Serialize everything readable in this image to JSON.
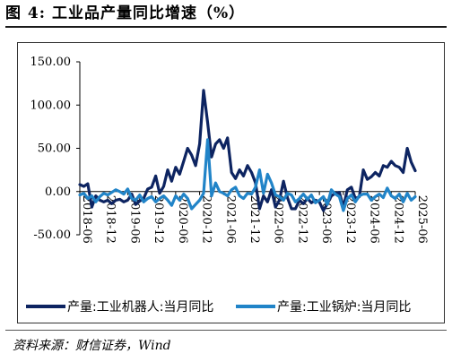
{
  "header": {
    "title": "图 4:  工业品产量同比增速（%）"
  },
  "footer": {
    "source": "资料来源：财信证券，Wind"
  },
  "chart_data": {
    "type": "line",
    "ylim": [
      -50,
      150
    ],
    "yticks": [
      "150.00",
      "100.00",
      "50.00",
      "0.00",
      "-50.00"
    ],
    "ytick_values": [
      150,
      100,
      50,
      0,
      -50
    ],
    "xtick_labels": [
      "2018-06",
      "2018-12",
      "2019-06",
      "2019-12",
      "2020-06",
      "2020-12",
      "2021-06",
      "2021-12",
      "2022-06",
      "2022-12",
      "2023-06",
      "2023-12",
      "2024-06",
      "2024-12",
      "2025-06"
    ],
    "x_range": [
      "2018-06",
      "2025-06"
    ],
    "legend_position": "bottom",
    "series": [
      {
        "name": "产量:工业机器人:当月同比",
        "color": "#0d2461",
        "x": [
          "2018-06",
          "2018-07",
          "2018-08",
          "2018-09",
          "2018-10",
          "2018-11",
          "2018-12",
          "2019-01",
          "2019-02",
          "2019-03",
          "2019-04",
          "2019-05",
          "2019-06",
          "2019-07",
          "2019-08",
          "2019-09",
          "2019-10",
          "2019-11",
          "2019-12",
          "2020-01",
          "2020-02",
          "2020-03",
          "2020-04",
          "2020-05",
          "2020-06",
          "2020-07",
          "2020-08",
          "2020-09",
          "2020-10",
          "2020-11",
          "2020-12",
          "2021-01",
          "2021-02",
          "2021-03",
          "2021-04",
          "2021-05",
          "2021-06",
          "2021-07",
          "2021-08",
          "2021-09",
          "2021-10",
          "2021-11",
          "2021-12",
          "2022-01",
          "2022-02",
          "2022-03",
          "2022-04",
          "2022-05",
          "2022-06",
          "2022-07",
          "2022-08",
          "2022-09",
          "2022-10",
          "2022-11",
          "2022-12",
          "2023-01",
          "2023-02",
          "2023-03",
          "2023-04",
          "2023-05",
          "2023-06",
          "2023-07",
          "2023-08",
          "2023-09",
          "2023-10",
          "2023-11",
          "2023-12",
          "2024-01",
          "2024-02",
          "2024-03",
          "2024-04",
          "2024-05",
          "2024-06",
          "2024-07",
          "2024-08",
          "2024-09",
          "2024-10",
          "2024-11",
          "2024-12",
          "2025-01",
          "2025-02",
          "2025-03",
          "2025-04",
          "2025-05",
          "2025-06"
        ],
        "values": [
          8,
          6,
          9,
          -18,
          -5,
          -10,
          -12,
          -10,
          -14,
          -10,
          -9,
          -12,
          -10,
          -3,
          -15,
          -11,
          -8,
          3,
          5,
          18,
          -2,
          6,
          25,
          12,
          28,
          20,
          35,
          50,
          42,
          30,
          55,
          117,
          80,
          40,
          55,
          60,
          50,
          62,
          22,
          15,
          25,
          18,
          30,
          22,
          10,
          -20,
          -5,
          -12,
          2,
          -18,
          -10,
          12,
          -7,
          -20,
          -20,
          -10,
          -14,
          -8,
          -13,
          -10,
          -12,
          -22,
          -14,
          -5,
          -2,
          -1,
          -18,
          2,
          5,
          -8,
          -6,
          25,
          14,
          17,
          22,
          18,
          30,
          28,
          35,
          30,
          28,
          22,
          50,
          34,
          24
        ]
      },
      {
        "name": "产量:工业锅炉:当月同比",
        "color": "#2184c8",
        "x": [
          "2018-06",
          "2018-07",
          "2018-08",
          "2018-09",
          "2018-10",
          "2018-11",
          "2018-12",
          "2019-01",
          "2019-02",
          "2019-03",
          "2019-04",
          "2019-05",
          "2019-06",
          "2019-07",
          "2019-08",
          "2019-09",
          "2019-10",
          "2019-11",
          "2019-12",
          "2020-01",
          "2020-02",
          "2020-03",
          "2020-04",
          "2020-05",
          "2020-06",
          "2020-07",
          "2020-08",
          "2020-09",
          "2020-10",
          "2020-11",
          "2020-12",
          "2021-01",
          "2021-02",
          "2021-03",
          "2021-04",
          "2021-05",
          "2021-06",
          "2021-07",
          "2021-08",
          "2021-09",
          "2021-10",
          "2021-11",
          "2021-12",
          "2022-01",
          "2022-02",
          "2022-03",
          "2022-04",
          "2022-05",
          "2022-06",
          "2022-07",
          "2022-08",
          "2022-09",
          "2022-10",
          "2022-11",
          "2022-12",
          "2023-01",
          "2023-02",
          "2023-03",
          "2023-04",
          "2023-05",
          "2023-06",
          "2023-07",
          "2023-08",
          "2023-09",
          "2023-10",
          "2023-11",
          "2023-12",
          "2024-01",
          "2024-02",
          "2024-03",
          "2024-04",
          "2024-05",
          "2024-06",
          "2024-07",
          "2024-08",
          "2024-09",
          "2024-10",
          "2024-11",
          "2024-12",
          "2025-01",
          "2025-02",
          "2025-03",
          "2025-04",
          "2025-05",
          "2025-06"
        ],
        "values": [
          -4,
          -2,
          -8,
          -5,
          -12,
          -6,
          -2,
          -4,
          -1,
          2,
          0,
          -3,
          3,
          -8,
          -10,
          -4,
          -12,
          -8,
          -6,
          -12,
          -8,
          -5,
          -10,
          -16,
          -5,
          -10,
          -3,
          -8,
          -20,
          -15,
          -10,
          -2,
          60,
          -5,
          10,
          0,
          -2,
          -5,
          2,
          5,
          -5,
          -8,
          -2,
          -3,
          5,
          25,
          -2,
          20,
          10,
          -4,
          -6,
          -10,
          -2,
          -4,
          -12,
          -8,
          -3,
          -9,
          -4,
          -13,
          -10,
          -6,
          -15,
          2,
          -3,
          -6,
          -22,
          -8,
          -4,
          -12,
          -5,
          -3,
          -3,
          -10,
          -6,
          -3,
          -7,
          4,
          -5,
          -8,
          -3,
          -12,
          -2,
          -10,
          -6
        ]
      }
    ]
  }
}
